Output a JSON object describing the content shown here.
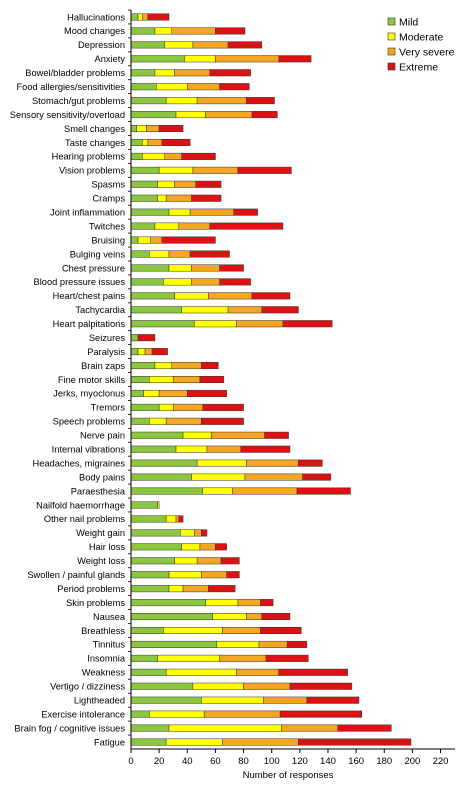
{
  "chart_data": {
    "type": "bar",
    "orientation": "horizontal",
    "stacked": true,
    "title": "",
    "xlabel": "Number of responses",
    "ylabel": "",
    "xlim": [
      0,
      225
    ],
    "xticks": [
      0,
      20,
      40,
      60,
      80,
      100,
      120,
      140,
      160,
      180,
      200,
      220
    ],
    "grid": false,
    "legend_position": "top-right",
    "categories": [
      "Hallucinations",
      "Mood changes",
      "Depression",
      "Anxiety",
      "Bowel/bladder problems",
      "Food allergies/sensitivities",
      "Stomach/gut problems",
      "Sensory sensitivity/overload",
      "Smell changes",
      "Taste changes",
      "Hearing problems",
      "Vision problems",
      "Spasms",
      "Cramps",
      "Joint inflammation",
      "Twitches",
      "Bruising",
      "Bulging veins",
      "Chest pressure",
      "Blood pressure issues",
      "Heart/chest pains",
      "Tachycardia",
      "Heart palpitations",
      "Seizures",
      "Paralysis",
      "Brain zaps",
      "Fine motor skills",
      "Jerks, myoclonus",
      "Tremors",
      "Speech problems",
      "Nerve pain",
      "Internal vibrations",
      "Headaches, migraines",
      "Body pains",
      "Paraesthesia",
      "Nailfold haemorrhage",
      "Other nail problems",
      "Weight gain",
      "Hair loss",
      "Weight loss",
      "Swollen / painful glands",
      "Period problems",
      "Skin problems",
      "Nausea",
      "Breathless",
      "Tinnitus",
      "Insomnia",
      "Weakness",
      "Vertigo / dizziness",
      "Lightheaded",
      "Exercise intolerance",
      "Brain fog / cognitive issues",
      "Fatigue"
    ],
    "series": [
      {
        "name": "Mild",
        "color": "#8cc63f",
        "values": [
          5,
          17,
          24,
          38,
          17,
          18,
          25,
          32,
          4,
          8,
          8,
          20,
          19,
          19,
          27,
          17,
          5,
          13,
          27,
          23,
          31,
          36,
          45,
          5,
          5,
          17,
          13,
          9,
          20,
          13,
          37,
          32,
          47,
          43,
          51,
          19,
          25,
          35,
          36,
          31,
          27,
          27,
          53,
          58,
          23,
          61,
          19,
          25,
          44,
          50,
          13,
          27,
          25
        ]
      },
      {
        "name": "Moderate",
        "color": "#ffff00",
        "values": [
          3,
          12,
          20,
          22,
          14,
          22,
          22,
          21,
          7,
          4,
          16,
          24,
          12,
          6,
          15,
          17,
          9,
          14,
          16,
          20,
          24,
          33,
          30,
          0,
          5,
          12,
          17,
          11,
          10,
          12,
          20,
          22,
          35,
          38,
          21,
          1,
          7,
          10,
          13,
          16,
          23,
          10,
          23,
          24,
          42,
          30,
          44,
          50,
          36,
          44,
          39,
          80,
          40
        ]
      },
      {
        "name": "Very severe",
        "color": "#f5a623",
        "values": [
          4,
          31,
          25,
          45,
          25,
          23,
          35,
          33,
          9,
          10,
          12,
          32,
          15,
          18,
          31,
          22,
          8,
          15,
          20,
          20,
          31,
          24,
          33,
          0,
          5,
          21,
          19,
          20,
          21,
          25,
          38,
          24,
          37,
          41,
          46,
          0,
          2,
          5,
          11,
          17,
          18,
          18,
          16,
          11,
          27,
          20,
          33,
          30,
          33,
          31,
          54,
          40,
          54
        ]
      },
      {
        "name": "Extreme",
        "color": "#dd1111",
        "values": [
          15,
          21,
          24,
          23,
          29,
          21,
          20,
          18,
          17,
          20,
          24,
          38,
          18,
          21,
          17,
          52,
          38,
          28,
          17,
          22,
          27,
          26,
          35,
          12,
          11,
          12,
          17,
          28,
          29,
          30,
          17,
          35,
          17,
          20,
          38,
          0,
          3,
          4,
          8,
          13,
          9,
          19,
          9,
          20,
          29,
          14,
          30,
          49,
          44,
          37,
          58,
          38,
          80
        ]
      }
    ]
  }
}
